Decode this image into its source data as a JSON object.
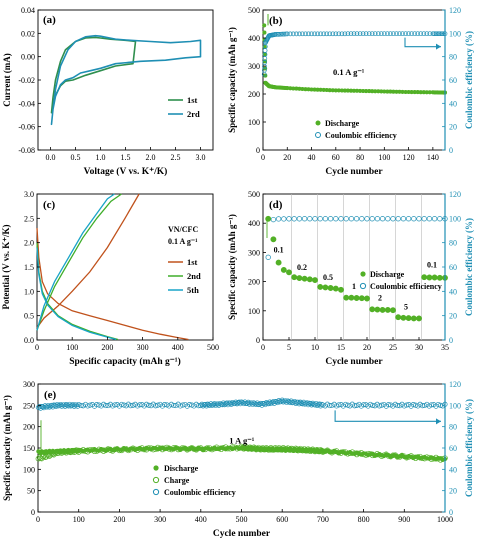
{
  "colors": {
    "green": "#52b026",
    "teal": "#1f8fb4",
    "brown": "#c0521c",
    "lime": "#3fae2a",
    "cyan": "#19a4c8",
    "darkteal": "#2c8d8e"
  },
  "chart_data": [
    {
      "id": "a",
      "type": "line",
      "panel_label": "(a)",
      "xlabel": "Voltage (V vs. K⁺/K)",
      "ylabel": "Current (mA)",
      "xlim": [
        -0.25,
        3.25
      ],
      "ylim": [
        -0.08,
        0.04
      ],
      "xticks": [
        0.0,
        0.5,
        1.0,
        1.5,
        2.0,
        2.5,
        3.0
      ],
      "yticks": [
        -0.08,
        -0.06,
        -0.04,
        -0.02,
        0.0,
        0.02,
        0.04
      ],
      "ytick_labels": [
        "-0.08",
        "-0.06",
        "-0.04",
        "-0.02",
        "0.00",
        "0.02",
        "0.04"
      ],
      "legend": [
        "1st",
        "2rd"
      ],
      "legend_position": "center-right",
      "series": [
        {
          "name": "1st",
          "color": "#2f8f4e",
          "x": [
            0.02,
            0.05,
            0.1,
            0.2,
            0.3,
            0.5,
            0.7,
            0.9,
            1.0,
            1.2,
            1.5,
            1.7,
            1.65,
            1.3,
            1.0,
            0.7,
            0.45,
            0.3,
            0.2,
            0.1,
            0.05,
            0.02
          ],
          "y": [
            -0.048,
            -0.035,
            -0.02,
            -0.004,
            0.006,
            0.013,
            0.016,
            0.0165,
            0.016,
            0.015,
            0.014,
            0.013,
            -0.006,
            -0.008,
            -0.012,
            -0.016,
            -0.02,
            -0.021,
            -0.025,
            -0.033,
            -0.042,
            -0.048
          ]
        },
        {
          "name": "2rd",
          "color": "#1f8fb4",
          "x": [
            0.02,
            0.05,
            0.1,
            0.2,
            0.35,
            0.5,
            0.7,
            0.9,
            1.0,
            1.3,
            1.6,
            2.0,
            2.4,
            2.8,
            3.0,
            3.0,
            2.7,
            2.3,
            1.8,
            1.3,
            1.0,
            0.8,
            0.6,
            0.45,
            0.3,
            0.2,
            0.1,
            0.05,
            0.02
          ],
          "y": [
            -0.058,
            -0.045,
            -0.028,
            -0.008,
            0.006,
            0.013,
            0.017,
            0.018,
            0.0175,
            0.015,
            0.014,
            0.013,
            0.012,
            0.013,
            0.014,
            0.0,
            -0.001,
            -0.003,
            -0.004,
            -0.006,
            -0.01,
            -0.012,
            -0.014,
            -0.018,
            -0.02,
            -0.024,
            -0.034,
            -0.045,
            -0.058
          ]
        }
      ]
    },
    {
      "id": "b",
      "type": "scatter",
      "panel_label": "(b)",
      "xlabel": "Cycle number",
      "ylabel": "Specific capacity (mAh g⁻¹)",
      "y2label": "Coulombic efficiency (%)",
      "xlim": [
        0,
        150
      ],
      "ylim": [
        0,
        500
      ],
      "y2lim": [
        0,
        120
      ],
      "xticks": [
        0,
        20,
        40,
        60,
        80,
        100,
        120,
        140
      ],
      "yticks": [
        0,
        100,
        200,
        300,
        400,
        500
      ],
      "y2ticks": [
        0,
        20,
        40,
        60,
        80,
        100,
        120
      ],
      "annotation": "0.1 A g⁻¹",
      "legend": [
        "Discharge",
        "Coulombic efficiency"
      ],
      "legend_position": "bottom-center",
      "series": [
        {
          "name": "Discharge",
          "axis": "left",
          "marker": "filled-circle",
          "color": "#52b026",
          "x": [
            1,
            2,
            5,
            10,
            20,
            40,
            60,
            80,
            100,
            120,
            140,
            150
          ],
          "y": [
            445,
            240,
            228,
            224,
            221,
            216,
            213,
            211,
            209,
            207,
            206,
            205
          ]
        },
        {
          "name": "Coulombic efficiency",
          "axis": "right",
          "marker": "open-circle",
          "color": "#1f8fb4",
          "x": [
            1,
            2,
            5,
            10,
            20,
            40,
            60,
            80,
            100,
            120,
            140,
            150
          ],
          "y": [
            65,
            92,
            98,
            99,
            99.5,
            99.6,
            99.6,
            99.7,
            99.7,
            99.7,
            99.7,
            99.7
          ]
        }
      ]
    },
    {
      "id": "c",
      "type": "line",
      "panel_label": "(c)",
      "xlabel": "Specific capacity (mAh g⁻¹)",
      "ylabel": "Potential (V vs. K⁺/K)",
      "xlim": [
        0,
        500
      ],
      "ylim": [
        0,
        3.0
      ],
      "xticks": [
        0,
        100,
        200,
        300,
        400,
        500
      ],
      "yticks": [
        0.0,
        0.5,
        1.0,
        1.5,
        2.0,
        2.5,
        3.0
      ],
      "annotation_lines": [
        "VN/CFC",
        "0.1 A g⁻¹"
      ],
      "legend": [
        "1st",
        "2nd",
        "5th"
      ],
      "legend_position": "center-right",
      "series": [
        {
          "name": "1st",
          "color": "#c0521c",
          "x": [
            0,
            5,
            15,
            30,
            60,
            100,
            150,
            200,
            250,
            300,
            350,
            400,
            430
          ],
          "y": [
            2.3,
            1.7,
            1.2,
            0.95,
            0.75,
            0.6,
            0.5,
            0.4,
            0.3,
            0.2,
            0.12,
            0.05,
            0.01
          ],
          "charge_x": [
            0,
            20,
            60,
            100,
            150,
            200,
            250,
            290
          ],
          "charge_y": [
            0.25,
            0.45,
            0.7,
            1.0,
            1.4,
            1.9,
            2.5,
            3.0
          ]
        },
        {
          "name": "2nd",
          "color": "#3fae2a",
          "x": [
            0,
            5,
            15,
            30,
            60,
            100,
            150,
            200,
            230
          ],
          "y": [
            2.0,
            1.4,
            1.0,
            0.75,
            0.5,
            0.32,
            0.18,
            0.07,
            0.01
          ],
          "charge_x": [
            0,
            20,
            50,
            90,
            130,
            170,
            210,
            240
          ],
          "charge_y": [
            0.2,
            0.6,
            1.1,
            1.6,
            2.1,
            2.5,
            2.85,
            3.0
          ]
        },
        {
          "name": "5th",
          "color": "#19a4c8",
          "x": [
            0,
            5,
            15,
            30,
            60,
            100,
            150,
            200,
            225
          ],
          "y": [
            1.9,
            1.35,
            0.95,
            0.72,
            0.48,
            0.3,
            0.16,
            0.06,
            0.01
          ],
          "charge_x": [
            0,
            20,
            50,
            90,
            130,
            170,
            200,
            220
          ],
          "charge_y": [
            0.2,
            0.7,
            1.2,
            1.7,
            2.2,
            2.6,
            2.9,
            3.0
          ]
        }
      ]
    },
    {
      "id": "d",
      "type": "scatter",
      "panel_label": "(d)",
      "xlabel": "Cycle number",
      "ylabel": "Specific capacity (mAh g⁻¹)",
      "y2label": "Coulombic efficiency (%)",
      "xlim": [
        0,
        35
      ],
      "ylim": [
        0,
        500
      ],
      "y2lim": [
        0,
        120
      ],
      "xticks": [
        0,
        5,
        10,
        15,
        20,
        25,
        30,
        35
      ],
      "yticks": [
        0,
        100,
        200,
        300,
        400,
        500
      ],
      "y2ticks": [
        0,
        20,
        40,
        60,
        80,
        100,
        120
      ],
      "rate_labels": [
        "0.1",
        "0.2",
        "0.5",
        "1",
        "2",
        "5",
        "0.1"
      ],
      "legend": [
        "Discharge",
        "Coulombic efficiency"
      ],
      "legend_position": "center-right",
      "series": [
        {
          "name": "Discharge",
          "axis": "left",
          "marker": "filled-circle",
          "color": "#52b026",
          "x": [
            1,
            2,
            3,
            4,
            5,
            6,
            7,
            8,
            9,
            10,
            11,
            12,
            13,
            14,
            15,
            16,
            17,
            18,
            19,
            20,
            21,
            22,
            23,
            24,
            25,
            26,
            27,
            28,
            29,
            30,
            31,
            32,
            33,
            34,
            35
          ],
          "y": [
            415,
            345,
            265,
            240,
            232,
            215,
            212,
            210,
            208,
            205,
            182,
            180,
            178,
            176,
            172,
            145,
            145,
            144,
            143,
            142,
            105,
            104,
            103,
            103,
            102,
            78,
            76,
            75,
            74,
            74,
            215,
            214,
            214,
            213,
            213
          ]
        },
        {
          "name": "Coulombic efficiency",
          "axis": "right",
          "marker": "open-circle",
          "color": "#1f8fb4",
          "x": [
            1,
            2,
            3,
            4,
            5,
            6,
            7,
            8,
            9,
            10,
            11,
            12,
            13,
            14,
            15,
            16,
            17,
            18,
            19,
            20,
            21,
            22,
            23,
            24,
            25,
            26,
            27,
            28,
            29,
            30,
            31,
            32,
            33,
            34,
            35
          ],
          "y": [
            68,
            99,
            99.5,
            99.5,
            99.6,
            99.6,
            99.6,
            99.7,
            99.7,
            99.7,
            99.7,
            99.7,
            99.7,
            99.7,
            99.7,
            99.7,
            99.7,
            99.7,
            99.7,
            99.7,
            99.7,
            99.7,
            99.7,
            99.7,
            99.7,
            99.7,
            99.7,
            99.7,
            99.7,
            99.7,
            99.7,
            99.7,
            99.7,
            99.7,
            99.7
          ]
        }
      ]
    },
    {
      "id": "e",
      "type": "scatter",
      "panel_label": "(e)",
      "xlabel": "Cycle number",
      "ylabel": "Specific capacity (mAh g⁻¹)",
      "y2label": "Coulombic efficiency (%)",
      "xlim": [
        0,
        1000
      ],
      "ylim": [
        0,
        300
      ],
      "y2lim": [
        0,
        120
      ],
      "xticks": [
        0,
        100,
        200,
        300,
        400,
        500,
        600,
        700,
        800,
        900,
        1000
      ],
      "yticks": [
        0,
        50,
        100,
        150,
        200,
        250,
        300
      ],
      "y2ticks": [
        0,
        20,
        40,
        60,
        80,
        100,
        120
      ],
      "annotation": "1 A g⁻¹",
      "legend": [
        "Discharge",
        "Charge",
        "Coulombic efficiency"
      ],
      "legend_position": "bottom-center",
      "series": [
        {
          "name": "Discharge",
          "axis": "left",
          "marker": "filled-circle",
          "color": "#52b026",
          "x": [
            1,
            50,
            100,
            200,
            300,
            400,
            500,
            550,
            600,
            650,
            700,
            800,
            900,
            1000
          ],
          "y": [
            140,
            142,
            144,
            147,
            149,
            148,
            150,
            147,
            146,
            145,
            143,
            136,
            130,
            124
          ]
        },
        {
          "name": "Charge",
          "axis": "left",
          "marker": "open-circle",
          "color": "#52b026",
          "x": [
            1,
            50,
            100,
            200,
            300,
            400,
            500,
            550,
            600,
            650,
            700,
            800,
            900,
            1000
          ],
          "y": [
            125,
            140,
            143,
            146,
            149,
            148,
            151,
            148,
            148,
            146,
            143,
            136,
            130,
            124
          ]
        },
        {
          "name": "Coulombic efficiency",
          "axis": "right",
          "marker": "open-circle",
          "color": "#1f8fb4",
          "x": [
            1,
            50,
            100,
            200,
            300,
            400,
            450,
            500,
            550,
            600,
            650,
            700,
            800,
            900,
            1000
          ],
          "y": [
            98,
            100,
            100,
            100.2,
            100.2,
            100.1,
            101,
            102.5,
            101,
            104,
            102,
            100.2,
            100.1,
            100.1,
            100.1
          ]
        }
      ]
    }
  ]
}
